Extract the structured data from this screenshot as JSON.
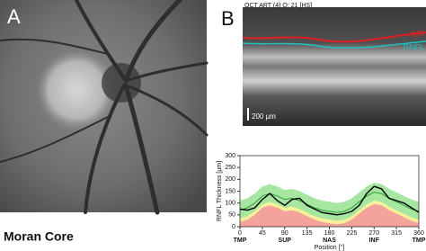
{
  "panel_a": {
    "label": "A",
    "caption": "Moran Core"
  },
  "panel_b": {
    "label": "B",
    "oct_header": "OCT ART (4) Q: 21 [HS]",
    "ilm_label": "ILM",
    "rnfl_label": "RNFL",
    "scale_label": "200 µm"
  },
  "chart_data": {
    "type": "area",
    "ylabel": "RNFL Thickness [µm]",
    "xlabel": "Position [°]",
    "x": [
      0,
      15,
      30,
      45,
      60,
      75,
      90,
      105,
      120,
      135,
      150,
      165,
      180,
      195,
      210,
      225,
      240,
      255,
      270,
      285,
      300,
      315,
      330,
      345,
      360
    ],
    "series": [
      {
        "color": "#a6e6a0",
        "values": [
          110,
          120,
          140,
          170,
          180,
          170,
          155,
          160,
          150,
          135,
          120,
          110,
          105,
          100,
          105,
          120,
          145,
          170,
          185,
          180,
          160,
          145,
          130,
          115,
          105
        ]
      },
      {
        "color": "#f6f09a",
        "values": [
          35,
          45,
          65,
          95,
          105,
          95,
          80,
          85,
          75,
          60,
          45,
          35,
          30,
          25,
          30,
          45,
          70,
          95,
          110,
          105,
          85,
          70,
          55,
          40,
          30
        ]
      },
      {
        "color": "#f3a29c",
        "values": [
          20,
          30,
          50,
          80,
          90,
          80,
          65,
          70,
          60,
          45,
          30,
          20,
          15,
          10,
          15,
          30,
          55,
          80,
          95,
          90,
          70,
          55,
          40,
          25,
          15
        ]
      },
      {
        "color": "#2f9e38",
        "values": [
          70,
          80,
          100,
          130,
          140,
          130,
          115,
          120,
          110,
          95,
          80,
          70,
          65,
          60,
          65,
          80,
          105,
          130,
          145,
          140,
          120,
          105,
          90,
          75,
          65
        ]
      },
      {
        "color": "#000000",
        "values": [
          75,
          70,
          80,
          115,
          140,
          110,
          90,
          115,
          120,
          90,
          75,
          60,
          55,
          50,
          55,
          65,
          90,
          140,
          170,
          160,
          120,
          110,
          100,
          80,
          60
        ]
      }
    ],
    "fill": [
      true,
      true,
      true,
      false,
      false
    ],
    "xlim": [
      0,
      360
    ],
    "ylim": [
      0,
      300
    ],
    "xticks": [
      0,
      45,
      90,
      135,
      180,
      225,
      270,
      315,
      360
    ],
    "yticks": [
      0,
      50,
      100,
      150,
      200,
      250,
      300
    ],
    "xticks2": [
      {
        "value": 0,
        "label": "TMP"
      },
      {
        "value": 90,
        "label": "SUP"
      },
      {
        "value": 180,
        "label": "NAS"
      },
      {
        "value": 270,
        "label": "INF"
      },
      {
        "value": 360,
        "label": "TMP"
      }
    ]
  }
}
